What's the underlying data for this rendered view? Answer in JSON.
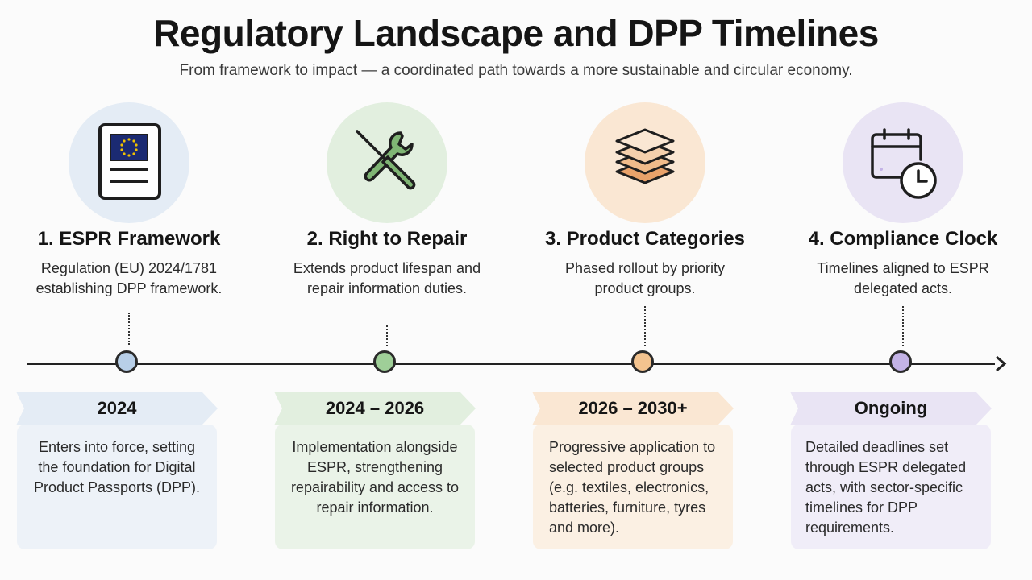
{
  "header": {
    "title": "Regulatory Landscape and DPP Timelines",
    "subtitle": "From framework to impact — a coordinated path towards a more sustainable and circular economy."
  },
  "steps": [
    {
      "title": "1. ESPR Framework",
      "description": "Regulation (EU) 2024/1781 establishing DPP framework.",
      "period": "2024",
      "details": "Enters into force, setting the foundation for Digital Product Passports (DPP).",
      "icon": "document-eu-flag-icon",
      "accent": "#b8cfe8",
      "light": "#e4ecf5",
      "card_bg": "#edf2f8"
    },
    {
      "title": "2. Right to Repair",
      "description": "Extends product lifespan and repair information duties.",
      "period": "2024 – 2026",
      "details": "Implementation alongside ESPR, strengthening repairability and access to repair information.",
      "icon": "screwdriver-wrench-icon",
      "accent": "#9fcf98",
      "light": "#e2efdf",
      "card_bg": "#eaf3e8"
    },
    {
      "title": "3. Product Categories",
      "description": "Phased rollout by priority product groups.",
      "period": "2026 – 2030+",
      "details": "Progressive application to selected product groups (e.g. textiles, electronics, batteries, furniture, tyres and more).",
      "icon": "stacked-layers-icon",
      "accent": "#f3c38f",
      "light": "#fae7d3",
      "card_bg": "#fbf0e3"
    },
    {
      "title": "4. Compliance Clock",
      "description": "Timelines aligned to ESPR delegated acts.",
      "period": "Ongoing",
      "details": "Detailed deadlines set through ESPR delegated acts, with sector-specific timelines for DPP requirements.",
      "icon": "calendar-clock-icon",
      "accent": "#c3b3e6",
      "light": "#e9e4f4",
      "card_bg": "#f0edf8"
    }
  ]
}
